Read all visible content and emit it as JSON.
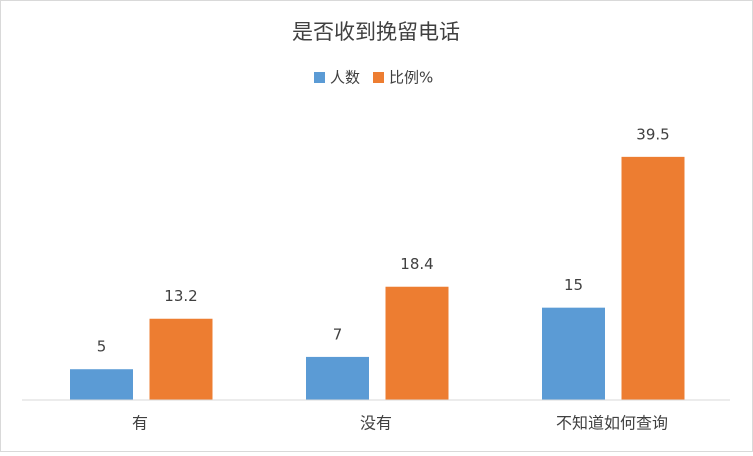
{
  "chart_data": {
    "type": "bar",
    "title": "是否收到挽留电话",
    "categories": [
      "有",
      "没有",
      "不知道如何查询"
    ],
    "series": [
      {
        "name": "人数",
        "color": "#5b9bd5",
        "values": [
          5,
          7,
          15
        ]
      },
      {
        "name": "比例%",
        "color": "#ed7d31",
        "values": [
          13.2,
          18.4,
          39.5
        ]
      }
    ],
    "ylim": [
      0,
      45
    ],
    "legend": "top"
  }
}
